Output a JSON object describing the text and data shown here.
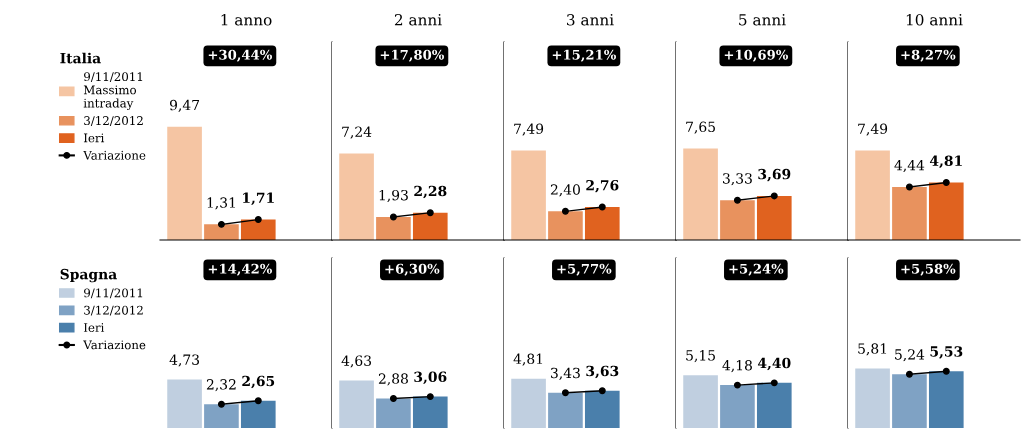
{
  "chart_data": [
    {
      "type": "bar",
      "title": "1 anno",
      "legend_title": "Italia",
      "legend": "left",
      "categories": [
        null
      ],
      "annotations": [
        "+30,44%",
        "Variazione"
      ],
      "series": [
        {
          "name": "9/11/2011\nMassimo\nintraday",
          "color": "#f5c5a3",
          "values": [
            9.47
          ],
          "value_labels": [
            "9,47"
          ]
        },
        {
          "name": "3/12/2012",
          "color": "#e8925e",
          "values": [
            1.31
          ],
          "value_labels": [
            "1,31"
          ]
        },
        {
          "name": "Ieri",
          "color": "#e0621f",
          "values": [
            1.71
          ],
          "value_labels": [
            "1,71"
          ]
        }
      ]
    },
    {
      "type": "bar",
      "title": "2 anni",
      "categories": [
        null
      ],
      "annotations": [
        "+17,80%"
      ],
      "series": [
        {
          "color": "#f5c5a3",
          "values": [
            7.24
          ],
          "value_labels": [
            "7,24"
          ]
        },
        {
          "color": "#e8925e",
          "values": [
            1.93
          ],
          "value_labels": [
            "1,93"
          ]
        },
        {
          "color": "#e0621f",
          "values": [
            2.28
          ],
          "value_labels": [
            "2,28"
          ]
        }
      ]
    },
    {
      "type": "bar",
      "title": "3 anni",
      "categories": [
        null
      ],
      "annotations": [
        "+15,21%"
      ],
      "series": [
        {
          "color": "#f5c5a3",
          "values": [
            7.49
          ],
          "value_labels": [
            "7,49"
          ]
        },
        {
          "color": "#e8925e",
          "values": [
            2.4
          ],
          "value_labels": [
            "2,40"
          ]
        },
        {
          "color": "#e0621f",
          "values": [
            2.76
          ],
          "value_labels": [
            "2,76"
          ]
        }
      ]
    },
    {
      "type": "bar",
      "title": "5 anni",
      "categories": [
        null
      ],
      "annotations": [
        "+10,69%"
      ],
      "series": [
        {
          "color": "#f5c5a3",
          "values": [
            7.65
          ],
          "value_labels": [
            "7,65"
          ]
        },
        {
          "color": "#e8925e",
          "values": [
            3.33
          ],
          "value_labels": [
            "3,33"
          ]
        },
        {
          "color": "#e0621f",
          "values": [
            3.69
          ],
          "value_labels": [
            "3,69"
          ]
        }
      ]
    },
    {
      "type": "bar",
      "title": "10 anni",
      "categories": [
        null
      ],
      "annotations": [
        "+8,27%"
      ],
      "series": [
        {
          "color": "#f5c5a3",
          "values": [
            7.49
          ],
          "value_labels": [
            "7,49"
          ]
        },
        {
          "color": "#e8925e",
          "values": [
            4.44
          ],
          "value_labels": [
            "4,44"
          ]
        },
        {
          "color": "#e0621f",
          "values": [
            4.81
          ],
          "value_labels": [
            "4,81"
          ]
        }
      ]
    },
    {
      "type": "bar",
      "legend_title": "Spagna",
      "legend": "left",
      "categories": [
        null
      ],
      "annotations": [
        "+14,42%",
        "Variazione"
      ],
      "series": [
        {
          "name": "9/11/2011",
          "color": "#c0cfe0",
          "values": [
            4.73
          ],
          "value_labels": [
            "4,73"
          ]
        },
        {
          "name": "3/12/2012",
          "color": "#7fa2c4",
          "values": [
            2.32
          ],
          "value_labels": [
            "2,32"
          ]
        },
        {
          "name": "Ieri",
          "color": "#4a7fab",
          "values": [
            2.65
          ],
          "value_labels": [
            "2,65"
          ]
        }
      ]
    },
    {
      "type": "bar",
      "categories": [
        null
      ],
      "annotations": [
        "+6,30%"
      ],
      "series": [
        {
          "color": "#c0cfe0",
          "values": [
            4.63
          ],
          "value_labels": [
            "4,63"
          ]
        },
        {
          "color": "#7fa2c4",
          "values": [
            2.88
          ],
          "value_labels": [
            "2,88"
          ]
        },
        {
          "color": "#4a7fab",
          "values": [
            3.06
          ],
          "value_labels": [
            "3,06"
          ]
        }
      ]
    },
    {
      "type": "bar",
      "categories": [
        null
      ],
      "annotations": [
        "+5,77%"
      ],
      "series": [
        {
          "color": "#c0cfe0",
          "values": [
            4.81
          ],
          "value_labels": [
            "4,81"
          ]
        },
        {
          "color": "#7fa2c4",
          "values": [
            3.43
          ],
          "value_labels": [
            "3,43"
          ]
        },
        {
          "color": "#4a7fab",
          "values": [
            3.63
          ],
          "value_labels": [
            "3,63"
          ]
        }
      ]
    },
    {
      "type": "bar",
      "categories": [
        null
      ],
      "annotations": [
        "+5,24%"
      ],
      "series": [
        {
          "color": "#c0cfe0",
          "values": [
            5.15
          ],
          "value_labels": [
            "5,15"
          ]
        },
        {
          "color": "#7fa2c4",
          "values": [
            4.18
          ],
          "value_labels": [
            "4,18"
          ]
        },
        {
          "color": "#4a7fab",
          "values": [
            4.4
          ],
          "value_labels": [
            "4,40"
          ]
        }
      ]
    },
    {
      "type": "bar",
      "categories": [
        null
      ],
      "annotations": [
        "+5,58%"
      ],
      "series": [
        {
          "color": "#c0cfe0",
          "values": [
            5.81
          ],
          "value_labels": [
            "5,81"
          ]
        },
        {
          "color": "#7fa2c4",
          "values": [
            5.24
          ],
          "value_labels": [
            "5,24"
          ]
        },
        {
          "color": "#4a7fab",
          "values": [
            5.53
          ],
          "value_labels": [
            "5,53"
          ]
        }
      ]
    }
  ]
}
